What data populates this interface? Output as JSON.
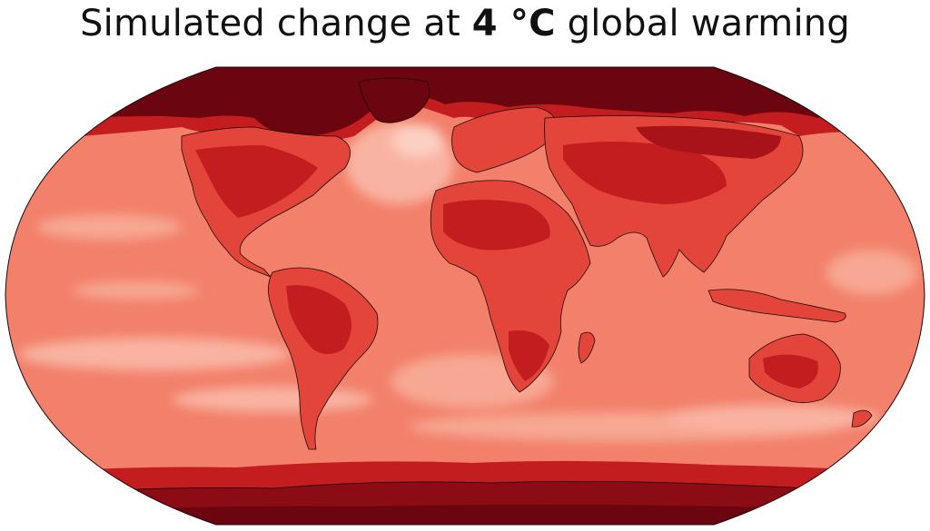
{
  "title": {
    "prefix": "Simulated change at ",
    "emphasis": "4 °C",
    "suffix": " global warming"
  },
  "colors": {
    "ocean_light": "#f7a28f",
    "ocean_mid": "#f2806a",
    "land_mid": "#e4453a",
    "land_dark": "#c31d1f",
    "polar": "#6b0610",
    "coastline": "#1a0a0a"
  },
  "map_projection": "robinson"
}
